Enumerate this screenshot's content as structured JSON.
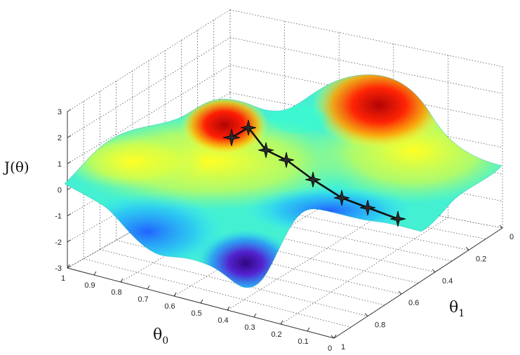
{
  "chart_data": {
    "type": "surface",
    "zlabel": "J(θ)",
    "xlabel": "θ",
    "xlabel_sub": "0",
    "ylabel": "θ",
    "ylabel_sub": "1",
    "z_ticks": [
      "3",
      "2",
      "1",
      "0",
      "-1",
      "-2",
      "-3"
    ],
    "x_ticks": [
      "1",
      "0.9",
      "0.8",
      "0.7",
      "0.6",
      "0.5",
      "0.4",
      "0.3",
      "0.2",
      "0.1",
      "0"
    ],
    "y_ticks": [
      "0",
      "0.2",
      "0.4",
      "0.6",
      "0.8",
      "1"
    ],
    "zlim": [
      -3,
      3
    ],
    "colormap": [
      "#30007f",
      "#2020ff",
      "#00c8ff",
      "#40ffb0",
      "#ffff20",
      "#ff9000",
      "#e00000"
    ],
    "grid": true,
    "descent_path_count": 8
  }
}
